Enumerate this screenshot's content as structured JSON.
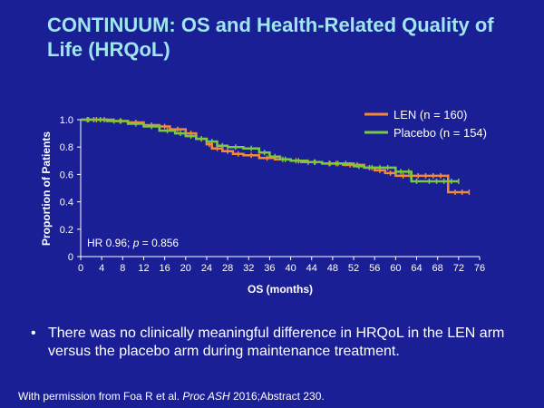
{
  "slide": {
    "title": "CONTINUUM: OS and Health-Related Quality of Life (HRQoL)",
    "bullet_symbol": "•",
    "bullet_text": "There was no clinically meaningful difference in HRQoL in the LEN arm versus the placebo arm during maintenance treatment.",
    "footnote_prefix": "With permission from Foa R et al. ",
    "footnote_journal": "Proc ASH",
    "footnote_suffix": " 2016;Abstract 230."
  },
  "colors": {
    "background": "#1a1f96",
    "title": "#9fe6ef",
    "len": "#f4893a",
    "placebo": "#79c942",
    "text": "#ffffff"
  },
  "chart_data": {
    "type": "line",
    "step": true,
    "xlabel": "OS (months)",
    "ylabel": "Proportion of Patients",
    "xlim": [
      0,
      76
    ],
    "ylim": [
      0,
      1.0
    ],
    "xticks": [
      0,
      4,
      8,
      12,
      16,
      20,
      24,
      28,
      32,
      36,
      40,
      44,
      48,
      52,
      56,
      60,
      64,
      68,
      72,
      76
    ],
    "yticks": [
      0,
      0.2,
      0.4,
      0.6,
      0.8,
      1.0
    ],
    "annotation": {
      "prefix": "HR 0.96; ",
      "p_symbol": "p",
      "suffix": " = 0.856"
    },
    "legend_position": "top-right",
    "series": [
      {
        "name": "LEN (n = 160)",
        "color": "#f4893a",
        "points": [
          [
            0,
            1.0
          ],
          [
            6,
            0.99
          ],
          [
            9,
            0.98
          ],
          [
            12,
            0.96
          ],
          [
            15,
            0.95
          ],
          [
            17,
            0.93
          ],
          [
            20,
            0.9
          ],
          [
            22,
            0.86
          ],
          [
            24,
            0.82
          ],
          [
            25,
            0.79
          ],
          [
            27,
            0.77
          ],
          [
            29,
            0.75
          ],
          [
            31,
            0.74
          ],
          [
            34,
            0.72
          ],
          [
            37,
            0.71
          ],
          [
            40,
            0.7
          ],
          [
            42,
            0.69
          ],
          [
            46,
            0.68
          ],
          [
            50,
            0.67
          ],
          [
            54,
            0.65
          ],
          [
            56,
            0.63
          ],
          [
            58,
            0.61
          ],
          [
            60,
            0.59
          ],
          [
            70,
            0.58
          ],
          [
            70,
            0.47
          ],
          [
            74,
            0.47
          ]
        ]
      },
      {
        "name": "Placebo (n = 154)",
        "color": "#79c942",
        "points": [
          [
            0,
            1.0
          ],
          [
            5,
            0.99
          ],
          [
            9,
            0.97
          ],
          [
            12,
            0.95
          ],
          [
            15,
            0.92
          ],
          [
            18,
            0.9
          ],
          [
            20,
            0.88
          ],
          [
            22,
            0.86
          ],
          [
            24,
            0.84
          ],
          [
            26,
            0.81
          ],
          [
            28,
            0.8
          ],
          [
            31,
            0.79
          ],
          [
            34,
            0.76
          ],
          [
            36,
            0.73
          ],
          [
            38,
            0.71
          ],
          [
            40,
            0.7
          ],
          [
            43,
            0.69
          ],
          [
            46,
            0.68
          ],
          [
            52,
            0.66
          ],
          [
            54,
            0.65
          ],
          [
            60,
            0.62
          ],
          [
            62,
            0.62
          ],
          [
            63,
            0.55
          ],
          [
            65,
            0.55
          ],
          [
            72,
            0.55
          ]
        ]
      }
    ]
  }
}
